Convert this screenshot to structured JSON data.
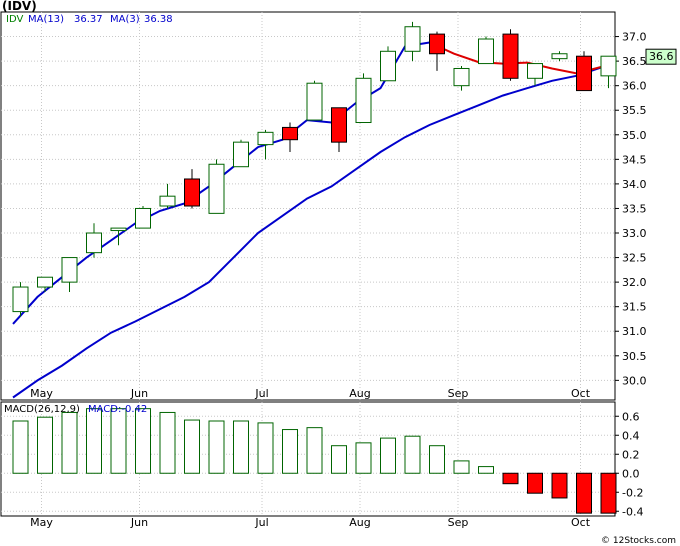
{
  "header": {
    "ticker": "(IDV)",
    "legend": [
      {
        "text": "IDV",
        "color": "#008000"
      },
      {
        "text": "MA(13)",
        "color": "#0000cc"
      },
      {
        "text": "36.37",
        "color": "#0000cc"
      },
      {
        "text": "MA(3)",
        "color": "#0000cc"
      },
      {
        "text": "36.38",
        "color": "#0000cc"
      }
    ]
  },
  "macd_legend": [
    {
      "text": "MACD(26,12,9)",
      "color": "#000000"
    },
    {
      "text": "MACD:-0.42",
      "color": "#0000cc"
    }
  ],
  "watermark": "© 12Stocks.com",
  "last_price_label": "36.6",
  "colors": {
    "up_candle_border": "#006400",
    "up_candle_fill": "#ffffff",
    "down_candle_fill": "#ff0000",
    "ma13_line": "#0000cc",
    "ma3_line": "#dd0000",
    "macd_positive_border": "#006400",
    "macd_negative_fill": "#ff0000",
    "grid": "#c8c8c8",
    "last_price_box": "#ccffcc"
  },
  "chart_data": [
    {
      "type": "candlestick",
      "title": "(IDV)",
      "ylim": [
        29.6,
        37.5
      ],
      "y_ticks": [
        30.0,
        30.5,
        31.0,
        31.5,
        32.0,
        32.5,
        33.0,
        33.5,
        34.0,
        34.5,
        35.0,
        35.5,
        36.0,
        36.5,
        37.0
      ],
      "y_tick_labels": [
        "30.0",
        "30.5",
        "31.0",
        "31.5",
        "32.0",
        "32.5",
        "33.0",
        "33.5",
        "34.0",
        "34.5",
        "35.0",
        "35.5",
        "36.0",
        "36.5",
        "37.0"
      ],
      "x_labels": [
        "May",
        "Jun",
        "Jul",
        "Aug",
        "Sep",
        "Oct"
      ],
      "x_label_weeks": [
        1,
        5,
        10,
        14,
        18,
        23
      ],
      "grid": true,
      "candles": [
        {
          "week": 0,
          "open": 31.4,
          "high": 32.0,
          "low": 31.3,
          "close": 31.9
        },
        {
          "week": 1,
          "open": 31.9,
          "high": 32.1,
          "low": 31.8,
          "close": 32.1
        },
        {
          "week": 2,
          "open": 32.0,
          "high": 32.5,
          "low": 31.8,
          "close": 32.5
        },
        {
          "week": 3,
          "open": 32.6,
          "high": 33.2,
          "low": 32.5,
          "close": 33.0
        },
        {
          "week": 4,
          "open": 33.05,
          "high": 33.1,
          "low": 32.75,
          "close": 33.1
        },
        {
          "week": 5,
          "open": 33.1,
          "high": 33.55,
          "low": 33.1,
          "close": 33.5
        },
        {
          "week": 6,
          "open": 33.55,
          "high": 34.0,
          "low": 33.5,
          "close": 33.75
        },
        {
          "week": 7,
          "open": 34.1,
          "high": 34.3,
          "low": 33.5,
          "close": 33.55
        },
        {
          "week": 8,
          "open": 33.4,
          "high": 34.5,
          "low": 33.4,
          "close": 34.4
        },
        {
          "week": 9,
          "open": 34.35,
          "high": 34.9,
          "low": 34.35,
          "close": 34.85
        },
        {
          "week": 10,
          "open": 34.8,
          "high": 35.1,
          "low": 34.5,
          "close": 35.05
        },
        {
          "week": 11,
          "open": 35.15,
          "high": 35.25,
          "low": 34.65,
          "close": 34.9
        },
        {
          "week": 12,
          "open": 35.3,
          "high": 36.1,
          "low": 35.3,
          "close": 36.05
        },
        {
          "week": 13,
          "open": 35.55,
          "high": 35.55,
          "low": 34.65,
          "close": 34.85
        },
        {
          "week": 14,
          "open": 35.25,
          "high": 36.25,
          "low": 35.25,
          "close": 36.15
        },
        {
          "week": 15,
          "open": 36.1,
          "high": 36.8,
          "low": 36.1,
          "close": 36.7
        },
        {
          "week": 16,
          "open": 36.7,
          "high": 37.3,
          "low": 36.5,
          "close": 37.2
        },
        {
          "week": 17,
          "open": 37.05,
          "high": 37.1,
          "low": 36.3,
          "close": 36.65
        },
        {
          "week": 18,
          "open": 36.0,
          "high": 36.4,
          "low": 35.9,
          "close": 36.35
        },
        {
          "week": 19,
          "open": 36.45,
          "high": 37.0,
          "low": 36.45,
          "close": 36.95
        },
        {
          "week": 20,
          "open": 37.05,
          "high": 37.15,
          "low": 36.1,
          "close": 36.15
        },
        {
          "week": 21,
          "open": 36.15,
          "high": 36.45,
          "low": 36.0,
          "close": 36.45
        },
        {
          "week": 22,
          "open": 36.55,
          "high": 36.7,
          "low": 36.5,
          "close": 36.65
        },
        {
          "week": 23,
          "open": 36.6,
          "high": 36.7,
          "low": 35.9,
          "close": 35.9
        },
        {
          "week": 24,
          "open": 36.2,
          "high": 36.6,
          "low": 35.95,
          "close": 36.6
        }
      ],
      "series": [
        {
          "name": "MA(13)",
          "color": "#0000cc",
          "points": [
            [
              0,
              29.65
            ],
            [
              1,
              30.0
            ],
            [
              2,
              30.3
            ],
            [
              3,
              30.65
            ],
            [
              4,
              30.97
            ],
            [
              5,
              31.2
            ],
            [
              6,
              31.45
            ],
            [
              7,
              31.7
            ],
            [
              8,
              32.0
            ],
            [
              9,
              32.5
            ],
            [
              10,
              33.0
            ],
            [
              11,
              33.35
            ],
            [
              12,
              33.7
            ],
            [
              13,
              33.95
            ],
            [
              14,
              34.3
            ],
            [
              15,
              34.65
            ],
            [
              16,
              34.95
            ],
            [
              17,
              35.2
            ],
            [
              18,
              35.4
            ],
            [
              19,
              35.6
            ],
            [
              20,
              35.8
            ],
            [
              21,
              35.95
            ],
            [
              22,
              36.1
            ],
            [
              23,
              36.2
            ],
            [
              24,
              36.37
            ]
          ]
        },
        {
          "name": "MA(3)",
          "color": "#0000cc",
          "segments_red_from_week": 17,
          "points": [
            [
              0,
              31.15
            ],
            [
              1,
              31.7
            ],
            [
              2,
              32.1
            ],
            [
              3,
              32.5
            ],
            [
              4,
              32.85
            ],
            [
              5,
              33.2
            ],
            [
              6,
              33.45
            ],
            [
              7,
              33.6
            ],
            [
              8,
              33.95
            ],
            [
              9,
              34.35
            ],
            [
              10,
              34.75
            ],
            [
              11,
              34.9
            ],
            [
              12,
              35.3
            ],
            [
              13,
              35.25
            ],
            [
              14,
              35.65
            ],
            [
              15,
              35.95
            ],
            [
              16,
              36.8
            ],
            [
              17,
              36.88
            ],
            [
              18,
              36.65
            ],
            [
              19,
              36.48
            ],
            [
              20,
              36.45
            ],
            [
              21,
              36.47
            ],
            [
              22,
              36.35
            ],
            [
              23,
              36.25
            ],
            [
              24,
              36.38
            ]
          ]
        }
      ]
    },
    {
      "type": "bar",
      "title": "MACD(26,12,9)",
      "ylim": [
        -0.45,
        0.75
      ],
      "y_ticks": [
        -0.4,
        -0.2,
        0.0,
        0.2,
        0.4,
        0.6
      ],
      "y_tick_labels": [
        "-0.4",
        "-0.2",
        "0.0",
        "0.2",
        "0.4",
        "0.6"
      ],
      "x_labels": [
        "May",
        "Jun",
        "Jul",
        "Aug",
        "Sep",
        "Oct"
      ],
      "x_label_weeks": [
        1,
        5,
        10,
        14,
        18,
        23
      ],
      "grid": true,
      "series": [
        {
          "name": "MACD:-0.42",
          "values": [
            0.55,
            0.59,
            0.64,
            0.68,
            0.68,
            0.68,
            0.64,
            0.56,
            0.55,
            0.55,
            0.53,
            0.46,
            0.48,
            0.29,
            0.32,
            0.37,
            0.39,
            0.29,
            0.13,
            0.07,
            -0.11,
            -0.21,
            -0.26,
            -0.42,
            -0.42
          ]
        }
      ]
    }
  ]
}
